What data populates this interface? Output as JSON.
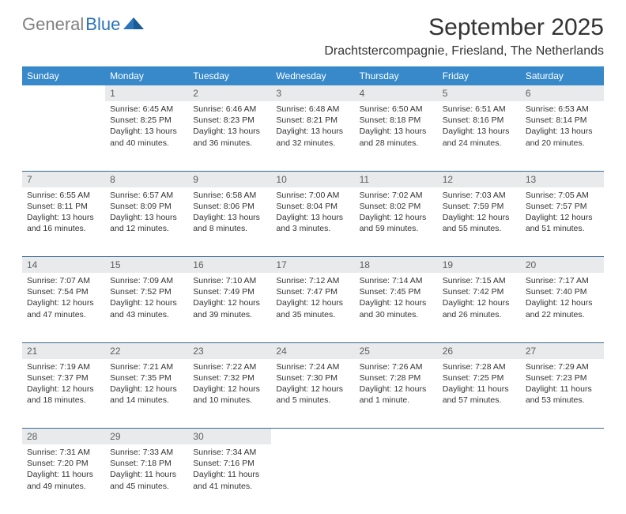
{
  "logo": {
    "gray": "General",
    "blue": "Blue"
  },
  "header": {
    "title": "September 2025",
    "subtitle": "Drachtstercompagnie, Friesland, The Netherlands"
  },
  "colors": {
    "header_bg": "#3789c9",
    "header_fg": "#ffffff",
    "daynum_bg": "#e9eaeb",
    "daynum_fg": "#5e5e5e",
    "divider": "#3b6a94",
    "logo_gray": "#808080",
    "logo_blue": "#2a74b8"
  },
  "weekday_labels": [
    "Sunday",
    "Monday",
    "Tuesday",
    "Wednesday",
    "Thursday",
    "Friday",
    "Saturday"
  ],
  "weeks": [
    [
      null,
      {
        "n": "1",
        "sr": "Sunrise: 6:45 AM",
        "ss": "Sunset: 8:25 PM",
        "d1": "Daylight: 13 hours",
        "d2": "and 40 minutes."
      },
      {
        "n": "2",
        "sr": "Sunrise: 6:46 AM",
        "ss": "Sunset: 8:23 PM",
        "d1": "Daylight: 13 hours",
        "d2": "and 36 minutes."
      },
      {
        "n": "3",
        "sr": "Sunrise: 6:48 AM",
        "ss": "Sunset: 8:21 PM",
        "d1": "Daylight: 13 hours",
        "d2": "and 32 minutes."
      },
      {
        "n": "4",
        "sr": "Sunrise: 6:50 AM",
        "ss": "Sunset: 8:18 PM",
        "d1": "Daylight: 13 hours",
        "d2": "and 28 minutes."
      },
      {
        "n": "5",
        "sr": "Sunrise: 6:51 AM",
        "ss": "Sunset: 8:16 PM",
        "d1": "Daylight: 13 hours",
        "d2": "and 24 minutes."
      },
      {
        "n": "6",
        "sr": "Sunrise: 6:53 AM",
        "ss": "Sunset: 8:14 PM",
        "d1": "Daylight: 13 hours",
        "d2": "and 20 minutes."
      }
    ],
    [
      {
        "n": "7",
        "sr": "Sunrise: 6:55 AM",
        "ss": "Sunset: 8:11 PM",
        "d1": "Daylight: 13 hours",
        "d2": "and 16 minutes."
      },
      {
        "n": "8",
        "sr": "Sunrise: 6:57 AM",
        "ss": "Sunset: 8:09 PM",
        "d1": "Daylight: 13 hours",
        "d2": "and 12 minutes."
      },
      {
        "n": "9",
        "sr": "Sunrise: 6:58 AM",
        "ss": "Sunset: 8:06 PM",
        "d1": "Daylight: 13 hours",
        "d2": "and 8 minutes."
      },
      {
        "n": "10",
        "sr": "Sunrise: 7:00 AM",
        "ss": "Sunset: 8:04 PM",
        "d1": "Daylight: 13 hours",
        "d2": "and 3 minutes."
      },
      {
        "n": "11",
        "sr": "Sunrise: 7:02 AM",
        "ss": "Sunset: 8:02 PM",
        "d1": "Daylight: 12 hours",
        "d2": "and 59 minutes."
      },
      {
        "n": "12",
        "sr": "Sunrise: 7:03 AM",
        "ss": "Sunset: 7:59 PM",
        "d1": "Daylight: 12 hours",
        "d2": "and 55 minutes."
      },
      {
        "n": "13",
        "sr": "Sunrise: 7:05 AM",
        "ss": "Sunset: 7:57 PM",
        "d1": "Daylight: 12 hours",
        "d2": "and 51 minutes."
      }
    ],
    [
      {
        "n": "14",
        "sr": "Sunrise: 7:07 AM",
        "ss": "Sunset: 7:54 PM",
        "d1": "Daylight: 12 hours",
        "d2": "and 47 minutes."
      },
      {
        "n": "15",
        "sr": "Sunrise: 7:09 AM",
        "ss": "Sunset: 7:52 PM",
        "d1": "Daylight: 12 hours",
        "d2": "and 43 minutes."
      },
      {
        "n": "16",
        "sr": "Sunrise: 7:10 AM",
        "ss": "Sunset: 7:49 PM",
        "d1": "Daylight: 12 hours",
        "d2": "and 39 minutes."
      },
      {
        "n": "17",
        "sr": "Sunrise: 7:12 AM",
        "ss": "Sunset: 7:47 PM",
        "d1": "Daylight: 12 hours",
        "d2": "and 35 minutes."
      },
      {
        "n": "18",
        "sr": "Sunrise: 7:14 AM",
        "ss": "Sunset: 7:45 PM",
        "d1": "Daylight: 12 hours",
        "d2": "and 30 minutes."
      },
      {
        "n": "19",
        "sr": "Sunrise: 7:15 AM",
        "ss": "Sunset: 7:42 PM",
        "d1": "Daylight: 12 hours",
        "d2": "and 26 minutes."
      },
      {
        "n": "20",
        "sr": "Sunrise: 7:17 AM",
        "ss": "Sunset: 7:40 PM",
        "d1": "Daylight: 12 hours",
        "d2": "and 22 minutes."
      }
    ],
    [
      {
        "n": "21",
        "sr": "Sunrise: 7:19 AM",
        "ss": "Sunset: 7:37 PM",
        "d1": "Daylight: 12 hours",
        "d2": "and 18 minutes."
      },
      {
        "n": "22",
        "sr": "Sunrise: 7:21 AM",
        "ss": "Sunset: 7:35 PM",
        "d1": "Daylight: 12 hours",
        "d2": "and 14 minutes."
      },
      {
        "n": "23",
        "sr": "Sunrise: 7:22 AM",
        "ss": "Sunset: 7:32 PM",
        "d1": "Daylight: 12 hours",
        "d2": "and 10 minutes."
      },
      {
        "n": "24",
        "sr": "Sunrise: 7:24 AM",
        "ss": "Sunset: 7:30 PM",
        "d1": "Daylight: 12 hours",
        "d2": "and 5 minutes."
      },
      {
        "n": "25",
        "sr": "Sunrise: 7:26 AM",
        "ss": "Sunset: 7:28 PM",
        "d1": "Daylight: 12 hours",
        "d2": "and 1 minute."
      },
      {
        "n": "26",
        "sr": "Sunrise: 7:28 AM",
        "ss": "Sunset: 7:25 PM",
        "d1": "Daylight: 11 hours",
        "d2": "and 57 minutes."
      },
      {
        "n": "27",
        "sr": "Sunrise: 7:29 AM",
        "ss": "Sunset: 7:23 PM",
        "d1": "Daylight: 11 hours",
        "d2": "and 53 minutes."
      }
    ],
    [
      {
        "n": "28",
        "sr": "Sunrise: 7:31 AM",
        "ss": "Sunset: 7:20 PM",
        "d1": "Daylight: 11 hours",
        "d2": "and 49 minutes."
      },
      {
        "n": "29",
        "sr": "Sunrise: 7:33 AM",
        "ss": "Sunset: 7:18 PM",
        "d1": "Daylight: 11 hours",
        "d2": "and 45 minutes."
      },
      {
        "n": "30",
        "sr": "Sunrise: 7:34 AM",
        "ss": "Sunset: 7:16 PM",
        "d1": "Daylight: 11 hours",
        "d2": "and 41 minutes."
      },
      null,
      null,
      null,
      null
    ]
  ]
}
